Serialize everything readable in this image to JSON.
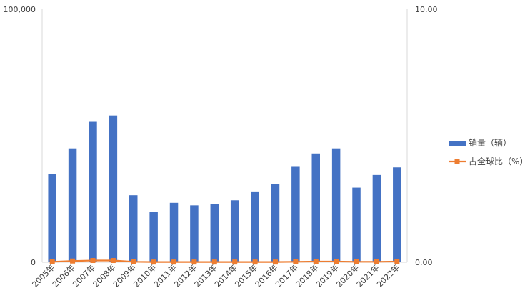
{
  "chart_data": {
    "type": "bar",
    "categories": [
      "2005年",
      "2006年",
      "2007年",
      "2008年",
      "2009年",
      "2010年",
      "2011年",
      "2012年",
      "2013年",
      "2014年",
      "2015年",
      "2016年",
      "2017年",
      "2018年",
      "2019年",
      "2020年",
      "2021年",
      "2022年"
    ],
    "series": [
      {
        "name": "销量（辆）",
        "type": "bar",
        "axis": "left",
        "color": "#4472C4",
        "values": [
          35000,
          45000,
          55500,
          58000,
          26500,
          20000,
          23500,
          22500,
          23000,
          24500,
          28000,
          31000,
          38000,
          43000,
          45000,
          29500,
          34500,
          37500
        ]
      },
      {
        "name": "占全球比（%）",
        "type": "line",
        "axis": "right",
        "color": "#ED7D31",
        "marker": "square",
        "values": [
          0.02,
          0.05,
          0.07,
          0.07,
          0.02,
          0.01,
          0.01,
          0.01,
          0.01,
          0.01,
          0.01,
          0.01,
          0.02,
          0.03,
          0.03,
          0.02,
          0.02,
          0.03
        ]
      }
    ],
    "y_left": {
      "min": 0,
      "max": 100000,
      "tick_labels": [
        "0",
        "100,000"
      ]
    },
    "y_right": {
      "min": 0,
      "max": 10,
      "tick_labels": [
        "0.00",
        "10.00"
      ]
    },
    "title": "",
    "xlabel": "",
    "ylabel": "",
    "grid": false,
    "legend_position": "right"
  }
}
